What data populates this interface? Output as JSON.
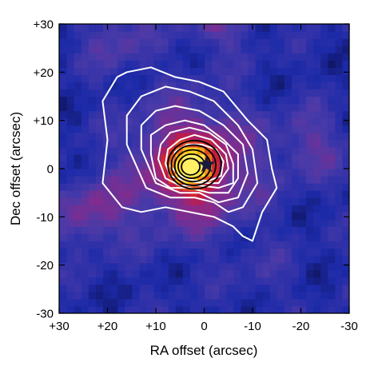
{
  "chart_data": {
    "type": "heatmap",
    "title": "",
    "xlabel": "RA offset (arcsec)",
    "ylabel": "Dec offset (arcsec)",
    "xlim": [
      30,
      -30
    ],
    "ylim": [
      -30,
      30
    ],
    "x_direction": "decreasing (east to the left)",
    "xticks": [
      30,
      20,
      10,
      0,
      -10,
      -20,
      -30
    ],
    "xtick_labels": [
      "+30",
      "+20",
      "+10",
      "0",
      "-10",
      "-20",
      "-30"
    ],
    "yticks": [
      30,
      20,
      10,
      0,
      -10,
      -20,
      -30
    ],
    "ytick_labels": [
      "+30",
      "+20",
      "+10",
      "0",
      "-10",
      "-20",
      "-30"
    ],
    "colormap": [
      "#0a0a3c",
      "#1c2aa8",
      "#4a3aa8",
      "#8a2a8a",
      "#c81a3c",
      "#e85a1a",
      "#ffd21a",
      "#fff066"
    ],
    "peak_position": [
      2.5,
      0.5
    ],
    "marker": {
      "type": "star",
      "x": -0.5,
      "y": 0.8,
      "color": "#1a1a3a"
    },
    "secondary_blobs": [
      {
        "x": 23,
        "y": -9,
        "level": 0.38
      },
      {
        "x": -22,
        "y": 5,
        "level": 0.32
      },
      {
        "x": 18,
        "y": 27,
        "level": 0.3
      },
      {
        "x": -3,
        "y": 32,
        "level": 0.36
      },
      {
        "x": -12,
        "y": -22,
        "level": 0.22
      }
    ],
    "white_contours": [
      {
        "x": [
          20,
          21,
          18,
          16,
          11,
          6,
          1,
          -4,
          -9,
          -13,
          -14,
          -15,
          -12,
          -10,
          -8,
          -6,
          -2,
          3,
          8,
          13,
          17,
          21,
          20
        ],
        "y": [
          6,
          14,
          19,
          20,
          21,
          19,
          18,
          16,
          10,
          6,
          0,
          -4,
          -9,
          -15,
          -14,
          -12,
          -10,
          -9,
          -8,
          -9,
          -8,
          -3,
          6
        ]
      },
      {
        "x": [
          16,
          16,
          13,
          8,
          3,
          -2,
          -7,
          -10,
          -11,
          -8,
          -5,
          -2,
          2,
          7,
          12,
          16
        ],
        "y": [
          5,
          11,
          15,
          17,
          16,
          14,
          9,
          4,
          -3,
          -8,
          -9,
          -7,
          -6,
          -6,
          -4,
          5
        ]
      },
      {
        "x": [
          13,
          13,
          10,
          6,
          1,
          -4,
          -8,
          -9,
          -7,
          -3,
          1,
          5,
          10,
          13
        ],
        "y": [
          4,
          9,
          12,
          13,
          12,
          9,
          5,
          -1,
          -6,
          -7,
          -5,
          -5,
          -3,
          4
        ]
      },
      {
        "x": [
          11,
          11,
          8,
          4,
          0,
          -4,
          -7,
          -7,
          -5,
          -1,
          3,
          7,
          10,
          11
        ],
        "y": [
          3,
          7,
          9,
          10,
          9,
          6,
          3,
          -2,
          -5,
          -5,
          -4,
          -4,
          -2,
          3
        ]
      },
      {
        "x": [
          9.5,
          9,
          7,
          3,
          -1,
          -4.5,
          -6,
          -6,
          -3,
          1,
          5,
          8,
          9.5
        ],
        "y": [
          2,
          5,
          7.5,
          8.5,
          7.5,
          5,
          1,
          -3,
          -4,
          -3.5,
          -3.5,
          -2,
          2
        ]
      },
      {
        "x": [
          8,
          7.5,
          5,
          2,
          -1.5,
          -4.5,
          -5,
          -3,
          0,
          4,
          7,
          8
        ],
        "y": [
          1,
          4,
          6,
          7,
          6,
          3,
          0,
          -3,
          -3,
          -2.5,
          -1.5,
          1
        ]
      },
      {
        "x": [
          7,
          6,
          3.5,
          0.5,
          -2.5,
          -4,
          -3.5,
          -1,
          2,
          5,
          7
        ],
        "y": [
          0.5,
          3.5,
          5,
          5,
          4,
          1.5,
          -1.5,
          -2.5,
          -2.5,
          -1.5,
          0.5
        ]
      }
    ],
    "black_contours": [
      {
        "cx": 2.0,
        "cy": 0.8,
        "rx": 5.5,
        "ry": 5.0
      },
      {
        "cx": 2.2,
        "cy": 0.7,
        "rx": 4.6,
        "ry": 4.2
      },
      {
        "cx": 2.4,
        "cy": 0.6,
        "rx": 3.7,
        "ry": 3.3
      },
      {
        "cx": 2.6,
        "cy": 0.5,
        "rx": 2.8,
        "ry": 2.5
      },
      {
        "cx": 2.8,
        "cy": 0.4,
        "rx": 1.9,
        "ry": 1.7
      }
    ]
  }
}
